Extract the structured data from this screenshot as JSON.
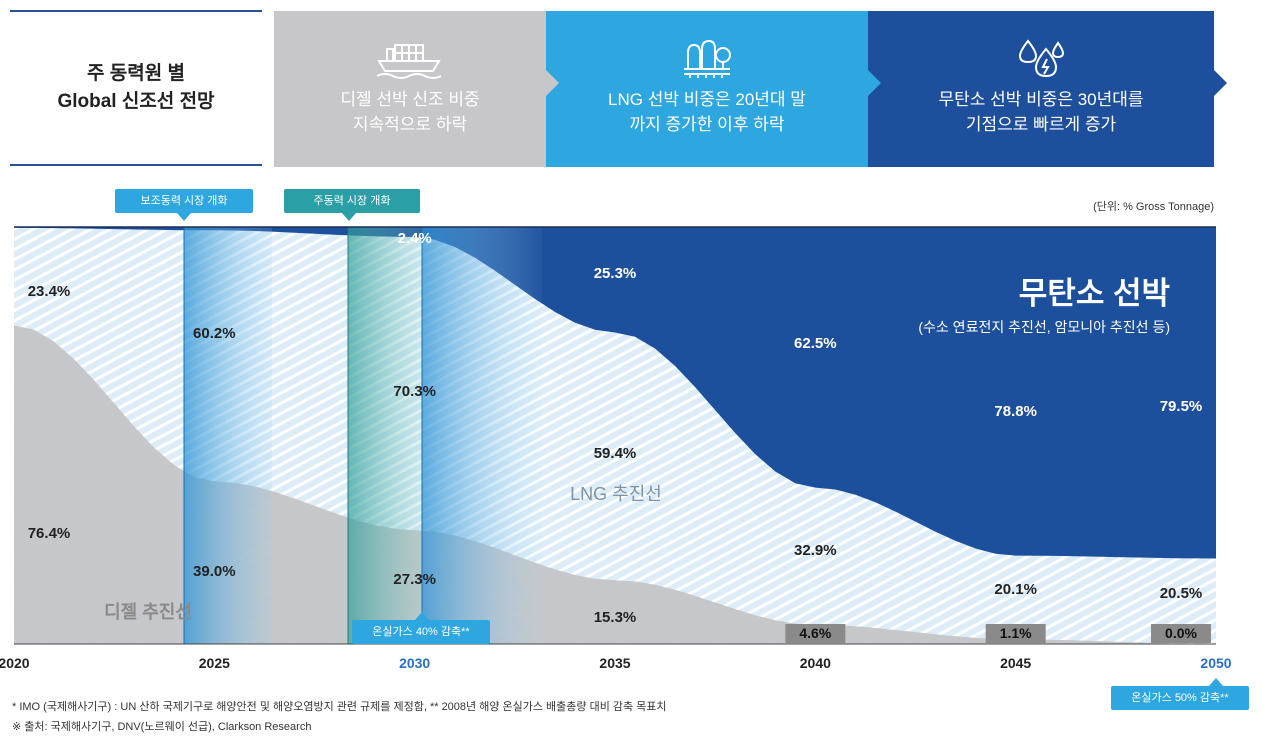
{
  "header": {
    "title": "주 동력원 별\nGlobal 신조선 전망",
    "panels": [
      {
        "text": "디젤 선박 신조 비중\n지속적으로 하락",
        "icon": "ship-icon",
        "color": "#c7c7c9"
      },
      {
        "text": "LNG 선박 비중은 20년대 말\n까지 증가한 이후 하락",
        "icon": "lng-tanks-icon",
        "color": "#2ea7e0"
      },
      {
        "text": "무탄소 선박 비중은 30년대를\n기점으로 빠르게 증가",
        "icon": "water-drops-icon",
        "color": "#1e4f9c"
      }
    ]
  },
  "badges": {
    "aux_market": "보조동력 시장 개화",
    "main_market": "주동력 시장 개화",
    "ghg_2030": "온실가스 40% 감축**",
    "ghg_2050": "온실가스 50% 감축**"
  },
  "unit": "(단위: % Gross Tonnage)",
  "chart_data": {
    "type": "area",
    "title": "",
    "x": [
      2020,
      2025,
      2030,
      2035,
      2040,
      2045,
      2050
    ],
    "xlim": [
      2020,
      2050
    ],
    "ylim": [
      0,
      100
    ],
    "series": [
      {
        "name": "디젤 추진선",
        "color": "#c2c2c4",
        "values": [
          76.4,
          39.0,
          27.3,
          15.3,
          4.6,
          1.1,
          0.0
        ],
        "labels": [
          "76.4%",
          "39.0%",
          "27.3%",
          "15.3%",
          "4.6%",
          "1.1%",
          "0.0%"
        ]
      },
      {
        "name": "LNG 추진선",
        "color": "#dff1fa",
        "values": [
          23.4,
          60.2,
          70.3,
          59.4,
          32.9,
          20.1,
          20.5
        ],
        "labels": [
          "23.4%",
          "60.2%",
          "70.3%",
          "59.4%",
          "32.9%",
          "20.1%",
          "20.5%"
        ]
      },
      {
        "name": "무탄소 선박",
        "color": "#1c4f9c",
        "values": [
          0.0,
          0.8,
          2.4,
          25.3,
          62.5,
          78.8,
          79.5
        ],
        "labels": [
          "",
          "",
          "2.4%",
          "25.3%",
          "62.5%",
          "78.8%",
          "79.5%"
        ]
      }
    ],
    "tick_labels": [
      "2020",
      "2025",
      "2030",
      "2035",
      "2040",
      "2045",
      "2050"
    ],
    "annotation_title": "무탄소 선박",
    "annotation_sub": "(수소 연료전지 추진선, 암모니아 추진선 등)"
  },
  "footnotes": {
    "line1": "* IMO (국제해사기구) : UN 산하 국제기구로 해양안전 및 해양오염방지 관련 규제를 제정함, ** 2008년 해양 온실가스 배출총량 대비 감축 목표치",
    "line2": "※ 출처: 국제해사기구, DNV(노르웨이 선급), Clarkson Research"
  }
}
